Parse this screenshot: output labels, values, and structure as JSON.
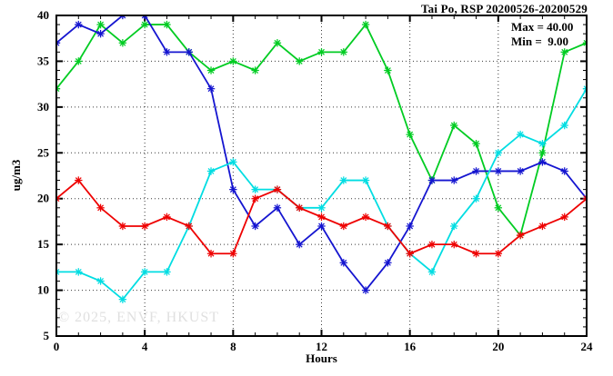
{
  "header": {
    "title": "Tai Po, RSP 20200526-20200529"
  },
  "legend": {
    "max_label": "Max = 40.00",
    "min_label": "Min =  9.00"
  },
  "watermark": "© 2025, ENVF, HKUST",
  "chart_data": {
    "type": "line",
    "title": "Tai Po, RSP 20200526-20200529",
    "xlabel": "Hours",
    "ylabel": "ug/m3",
    "xlim": [
      0,
      24
    ],
    "ylim": [
      5,
      40
    ],
    "x_major_ticks": [
      0,
      4,
      8,
      12,
      16,
      20,
      24
    ],
    "y_major_ticks": [
      5,
      10,
      15,
      20,
      25,
      30,
      35,
      40
    ],
    "x_minor_step": 1,
    "y_minor_step": 1,
    "grid": true,
    "legend_position": "top-right-inside",
    "stat_max": 40.0,
    "stat_min": 9.0,
    "x": [
      0,
      1,
      2,
      3,
      4,
      5,
      6,
      7,
      8,
      9,
      10,
      11,
      12,
      13,
      14,
      15,
      16,
      17,
      18,
      19,
      20,
      21,
      22,
      23,
      24
    ],
    "series": [
      {
        "name": "series-green",
        "color": "#00cc22",
        "values": [
          32,
          35,
          39,
          37,
          39,
          39,
          36,
          34,
          35,
          34,
          37,
          35,
          36,
          36,
          39,
          34,
          27,
          22,
          28,
          26,
          19,
          16,
          25,
          36,
          37
        ]
      },
      {
        "name": "series-blue",
        "color": "#1515d0",
        "values": [
          37,
          39,
          38,
          40,
          40,
          36,
          36,
          32,
          21,
          17,
          19,
          15,
          17,
          13,
          10,
          13,
          17,
          22,
          22,
          23,
          23,
          23,
          24,
          23,
          20
        ]
      },
      {
        "name": "series-cyan",
        "color": "#00dde2",
        "values": [
          12,
          12,
          11,
          9,
          12,
          12,
          17,
          23,
          24,
          21,
          21,
          19,
          19,
          22,
          22,
          17,
          14,
          12,
          17,
          20,
          25,
          27,
          26,
          28,
          32
        ]
      },
      {
        "name": "series-red",
        "color": "#ee0000",
        "values": [
          20,
          22,
          19,
          17,
          17,
          18,
          17,
          14,
          14,
          20,
          21,
          19,
          18,
          17,
          18,
          17,
          14,
          15,
          15,
          14,
          14,
          16,
          17,
          18,
          20
        ]
      }
    ]
  }
}
